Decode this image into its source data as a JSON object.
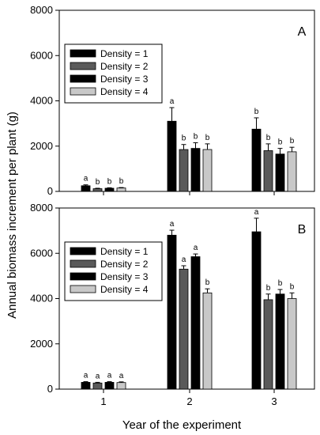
{
  "figure": {
    "ylabel": "Annual biomass increment per plant (g)",
    "xlabel": "Year of the experiment"
  },
  "chart_data": [
    {
      "type": "bar",
      "panel_label": "A",
      "categories": [
        "1",
        "2",
        "3"
      ],
      "ylim": [
        0,
        8000
      ],
      "yticks": [
        "0",
        "2000",
        "4000",
        "6000",
        "8000"
      ],
      "show_x_tick_labels": false,
      "legend_position": "top-left",
      "grid": false,
      "series": [
        {
          "name": "Density = 1",
          "color": "#000000",
          "values": [
            250,
            3100,
            2750
          ],
          "errors": [
            40,
            600,
            500
          ],
          "letters": [
            "a",
            "a",
            "b"
          ]
        },
        {
          "name": "Density = 2",
          "color": "#5a5a5a",
          "values": [
            120,
            1850,
            1800
          ],
          "errors": [
            20,
            220,
            300
          ],
          "letters": [
            "b",
            "b",
            "b"
          ]
        },
        {
          "name": "Density = 3",
          "color": "#000000",
          "values": [
            140,
            1900,
            1650
          ],
          "errors": [
            20,
            250,
            250
          ],
          "letters": [
            "b",
            "b",
            "b"
          ]
        },
        {
          "name": "Density = 4",
          "color": "#c8c8c8",
          "values": [
            150,
            1850,
            1750
          ],
          "errors": [
            20,
            250,
            200
          ],
          "letters": [
            "b",
            "b",
            "b"
          ]
        }
      ]
    },
    {
      "type": "bar",
      "panel_label": "B",
      "categories": [
        "1",
        "2",
        "3"
      ],
      "ylim": [
        0,
        8000
      ],
      "yticks": [
        "0",
        "2000",
        "4000",
        "6000",
        "8000"
      ],
      "show_x_tick_labels": true,
      "legend_position": "top-left",
      "grid": false,
      "series": [
        {
          "name": "Density = 1",
          "color": "#000000",
          "values": [
            300,
            6800,
            6950
          ],
          "errors": [
            30,
            220,
            600
          ],
          "letters": [
            "a",
            "a",
            "a"
          ]
        },
        {
          "name": "Density = 2",
          "color": "#5a5a5a",
          "values": [
            270,
            5300,
            3950
          ],
          "errors": [
            30,
            150,
            250
          ],
          "letters": [
            "a",
            "a",
            "b"
          ]
        },
        {
          "name": "Density = 3",
          "color": "#000000",
          "values": [
            300,
            5850,
            4200
          ],
          "errors": [
            30,
            120,
            200
          ],
          "letters": [
            "a",
            "a",
            "b"
          ]
        },
        {
          "name": "Density = 4",
          "color": "#c8c8c8",
          "values": [
            290,
            4250,
            4000
          ],
          "errors": [
            30,
            180,
            250
          ],
          "letters": [
            "a",
            "b",
            "b"
          ]
        }
      ]
    }
  ]
}
